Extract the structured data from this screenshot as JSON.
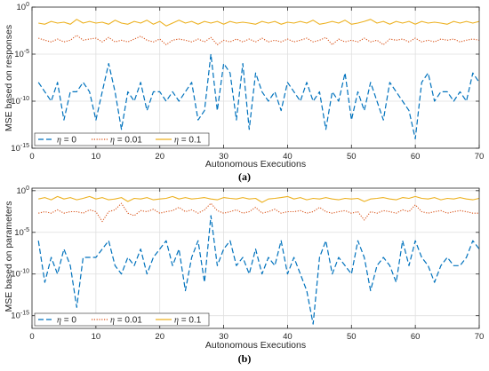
{
  "colors": {
    "eta0": "#0072BD",
    "eta001": "#D95319",
    "eta01": "#EDB120",
    "grid": "#dfdfdf",
    "axis": "#262626"
  },
  "chart_data": [
    {
      "type": "line",
      "panel_label": "(a)",
      "xlabel": "Autonomous Executions",
      "ylabel": "MSE based on responses",
      "xlim": [
        0,
        70
      ],
      "ylim": [
        1e-15,
        1
      ],
      "yscale": "log",
      "x_ticks": [
        0,
        10,
        20,
        30,
        40,
        50,
        60,
        70
      ],
      "y_ticks": [
        {
          "value": 1,
          "base": "10",
          "exp": "0"
        },
        {
          "value": 1e-05,
          "base": "10",
          "exp": "-5"
        },
        {
          "value": 1e-10,
          "base": "10",
          "exp": "-10"
        },
        {
          "value": 1e-15,
          "base": "10",
          "exp": "-15"
        }
      ],
      "grid": true,
      "legend_position": "bottom-left",
      "x": [
        1,
        2,
        3,
        4,
        5,
        6,
        7,
        8,
        9,
        10,
        11,
        12,
        13,
        14,
        15,
        16,
        17,
        18,
        19,
        20,
        21,
        22,
        23,
        24,
        25,
        26,
        27,
        28,
        29,
        30,
        31,
        32,
        33,
        34,
        35,
        36,
        37,
        38,
        39,
        40,
        41,
        42,
        43,
        44,
        45,
        46,
        47,
        48,
        49,
        50,
        51,
        52,
        53,
        54,
        55,
        56,
        57,
        58,
        59,
        60,
        61,
        62,
        63,
        64,
        65,
        66,
        67,
        68,
        69,
        70
      ],
      "series": [
        {
          "name_var": "η",
          "name_rest": " = 0",
          "style": "dashed",
          "color_key": "eta0",
          "values": [
            1e-08,
            1e-09,
            1e-10,
            1e-08,
            1e-12,
            1e-09,
            1e-09,
            1e-08,
            1e-09,
            1e-12,
            1e-09,
            1e-06,
            1e-09,
            1e-13,
            1e-09,
            1e-10,
            1e-08,
            1e-11,
            1e-09,
            1e-09,
            1e-10,
            1e-09,
            1e-10,
            1e-09,
            1e-08,
            1e-12,
            1e-11,
            1e-05,
            1e-11,
            1e-06,
            1e-07,
            1e-12,
            1e-06,
            1e-13,
            1e-07,
            1e-09,
            1e-10,
            1e-09,
            1e-11,
            1e-08,
            1e-09,
            1e-10,
            1e-08,
            1e-10,
            1e-09,
            1e-13,
            1e-09,
            1e-10,
            1e-07,
            1e-12,
            1e-09,
            1e-11,
            1e-08,
            1e-10,
            1e-12,
            1e-08,
            1e-09,
            1e-10,
            1e-11,
            1e-14,
            1e-08,
            1e-07,
            1e-10,
            1e-09,
            1e-09,
            1e-10,
            1e-09,
            1e-10,
            1e-07,
            1e-08
          ]
        },
        {
          "name_var": "η",
          "name_rest": " = 0.01",
          "style": "dotted",
          "color_key": "eta001",
          "values": [
            0.0005,
            0.0003,
            0.0002,
            0.0004,
            0.0002,
            0.0003,
            0.001,
            0.0003,
            0.0004,
            0.0005,
            0.0002,
            0.0006,
            0.0002,
            0.0003,
            0.0002,
            0.0004,
            0.0008,
            0.0003,
            0.0002,
            0.0004,
            0.0001,
            0.0003,
            0.0004,
            0.0003,
            0.0002,
            0.0004,
            0.0002,
            0.0006,
            0.0001,
            0.0003,
            0.0002,
            0.0004,
            0.0002,
            0.0004,
            0.0002,
            0.0005,
            0.0002,
            0.0003,
            0.0002,
            0.0004,
            0.0002,
            0.0003,
            0.0005,
            0.0002,
            0.0003,
            0.0006,
            0.0001,
            0.0004,
            0.0002,
            0.0003,
            0.0002,
            0.0005,
            0.0002,
            0.0003,
            0.0001,
            0.0004,
            0.0003,
            0.0004,
            0.0002,
            0.0005,
            0.0002,
            0.0003,
            0.0002,
            0.0004,
            0.0003,
            0.0004,
            0.0002,
            0.0003,
            0.0004,
            0.0003
          ]
        },
        {
          "name_var": "η",
          "name_rest": " = 0.1",
          "style": "solid",
          "color_key": "eta01",
          "values": [
            0.02,
            0.015,
            0.03,
            0.02,
            0.025,
            0.015,
            0.05,
            0.02,
            0.03,
            0.02,
            0.025,
            0.015,
            0.04,
            0.02,
            0.015,
            0.03,
            0.02,
            0.04,
            0.015,
            0.03,
            0.01,
            0.02,
            0.04,
            0.02,
            0.03,
            0.015,
            0.03,
            0.02,
            0.03,
            0.015,
            0.03,
            0.02,
            0.025,
            0.02,
            0.015,
            0.03,
            0.02,
            0.03,
            0.015,
            0.025,
            0.02,
            0.03,
            0.02,
            0.04,
            0.015,
            0.02,
            0.03,
            0.02,
            0.04,
            0.015,
            0.02,
            0.03,
            0.05,
            0.02,
            0.03,
            0.015,
            0.03,
            0.02,
            0.03,
            0.015,
            0.03,
            0.02,
            0.025,
            0.02,
            0.015,
            0.03,
            0.02,
            0.03,
            0.02,
            0.03
          ]
        }
      ]
    },
    {
      "type": "line",
      "panel_label": "(b)",
      "xlabel": "Autonomous Executions",
      "ylabel": "MSE based on parameters",
      "xlim": [
        0,
        70
      ],
      "ylim": [
        3e-17,
        2
      ],
      "yscale": "log",
      "x_ticks": [
        0,
        10,
        20,
        30,
        40,
        50,
        60,
        70
      ],
      "y_ticks": [
        {
          "value": 1,
          "base": "10",
          "exp": "0"
        },
        {
          "value": 1e-05,
          "base": "10",
          "exp": "-5"
        },
        {
          "value": 1e-10,
          "base": "10",
          "exp": "-10"
        },
        {
          "value": 1e-15,
          "base": "10",
          "exp": "-15"
        }
      ],
      "grid": true,
      "legend_position": "bottom-left",
      "x": [
        1,
        2,
        3,
        4,
        5,
        6,
        7,
        8,
        9,
        10,
        11,
        12,
        13,
        14,
        15,
        16,
        17,
        18,
        19,
        20,
        21,
        22,
        23,
        24,
        25,
        26,
        27,
        28,
        29,
        30,
        31,
        32,
        33,
        34,
        35,
        36,
        37,
        38,
        39,
        40,
        41,
        42,
        43,
        44,
        45,
        46,
        47,
        48,
        49,
        50,
        51,
        52,
        53,
        54,
        55,
        56,
        57,
        58,
        59,
        60,
        61,
        62,
        63,
        64,
        65,
        66,
        67,
        68,
        69,
        70
      ],
      "series": [
        {
          "name_var": "η",
          "name_rest": " = 0",
          "style": "dashed",
          "color_key": "eta0",
          "values": [
            1e-06,
            1e-11,
            1e-08,
            1e-10,
            1e-07,
            1e-09,
            1e-14,
            1e-08,
            1e-08,
            1e-08,
            1e-07,
            1e-06,
            1e-09,
            1e-10,
            1e-08,
            1e-09,
            1e-07,
            1e-10,
            1e-08,
            1e-07,
            1e-06,
            1e-09,
            1e-07,
            1e-12,
            1e-08,
            1e-06,
            1e-11,
            0.001,
            1e-09,
            1e-07,
            1e-06,
            1e-09,
            1e-08,
            1e-10,
            1e-07,
            1e-10,
            1e-08,
            1e-09,
            1e-06,
            1e-10,
            1e-08,
            1e-10,
            1e-12,
            1e-16,
            1e-08,
            1e-06,
            1e-10,
            1e-08,
            1e-09,
            1e-10,
            1e-06,
            1e-08,
            1e-12,
            1e-09,
            1e-08,
            1e-09,
            1e-11,
            1e-06,
            1e-09,
            1e-06,
            1e-08,
            1e-09,
            1e-11,
            1e-09,
            1e-08,
            1e-09,
            1e-09,
            1e-08,
            1e-06,
            1e-07
          ]
        },
        {
          "name_var": "η",
          "name_rest": " = 0.01",
          "style": "dotted",
          "color_key": "eta001",
          "values": [
            0.002,
            0.003,
            0.002,
            0.005,
            0.002,
            0.003,
            0.003,
            0.002,
            0.005,
            0.003,
            0.0002,
            0.003,
            0.005,
            0.03,
            0.002,
            0.001,
            0.004,
            0.003,
            0.006,
            0.002,
            0.003,
            0.004,
            0.01,
            0.003,
            0.005,
            0.002,
            0.005,
            0.03,
            0.004,
            0.002,
            0.003,
            0.005,
            0.002,
            0.003,
            0.01,
            0.002,
            0.003,
            0.006,
            0.002,
            0.003,
            0.003,
            0.004,
            0.002,
            0.003,
            0.01,
            0.003,
            0.002,
            0.003,
            0.004,
            0.002,
            0.003,
            0.0003,
            0.003,
            0.002,
            0.004,
            0.003,
            0.002,
            0.005,
            0.003,
            0.02,
            0.003,
            0.002,
            0.003,
            0.004,
            0.002,
            0.003,
            0.004,
            0.003,
            0.002,
            0.002
          ]
        },
        {
          "name_var": "η",
          "name_rest": " = 0.1",
          "style": "solid",
          "color_key": "eta01",
          "values": [
            0.1,
            0.15,
            0.08,
            0.2,
            0.1,
            0.15,
            0.08,
            0.12,
            0.2,
            0.1,
            0.15,
            0.08,
            0.1,
            0.15,
            0.05,
            0.12,
            0.1,
            0.15,
            0.08,
            0.1,
            0.12,
            0.2,
            0.1,
            0.15,
            0.1,
            0.12,
            0.15,
            0.1,
            0.08,
            0.15,
            0.12,
            0.1,
            0.15,
            0.1,
            0.12,
            0.04,
            0.1,
            0.12,
            0.15,
            0.2,
            0.1,
            0.15,
            0.08,
            0.12,
            0.1,
            0.15,
            0.1,
            0.08,
            0.12,
            0.1,
            0.12,
            0.05,
            0.1,
            0.12,
            0.15,
            0.1,
            0.08,
            0.15,
            0.12,
            0.2,
            0.12,
            0.1,
            0.15,
            0.08,
            0.12,
            0.1,
            0.15,
            0.1,
            0.08,
            0.12
          ]
        }
      ]
    }
  ]
}
